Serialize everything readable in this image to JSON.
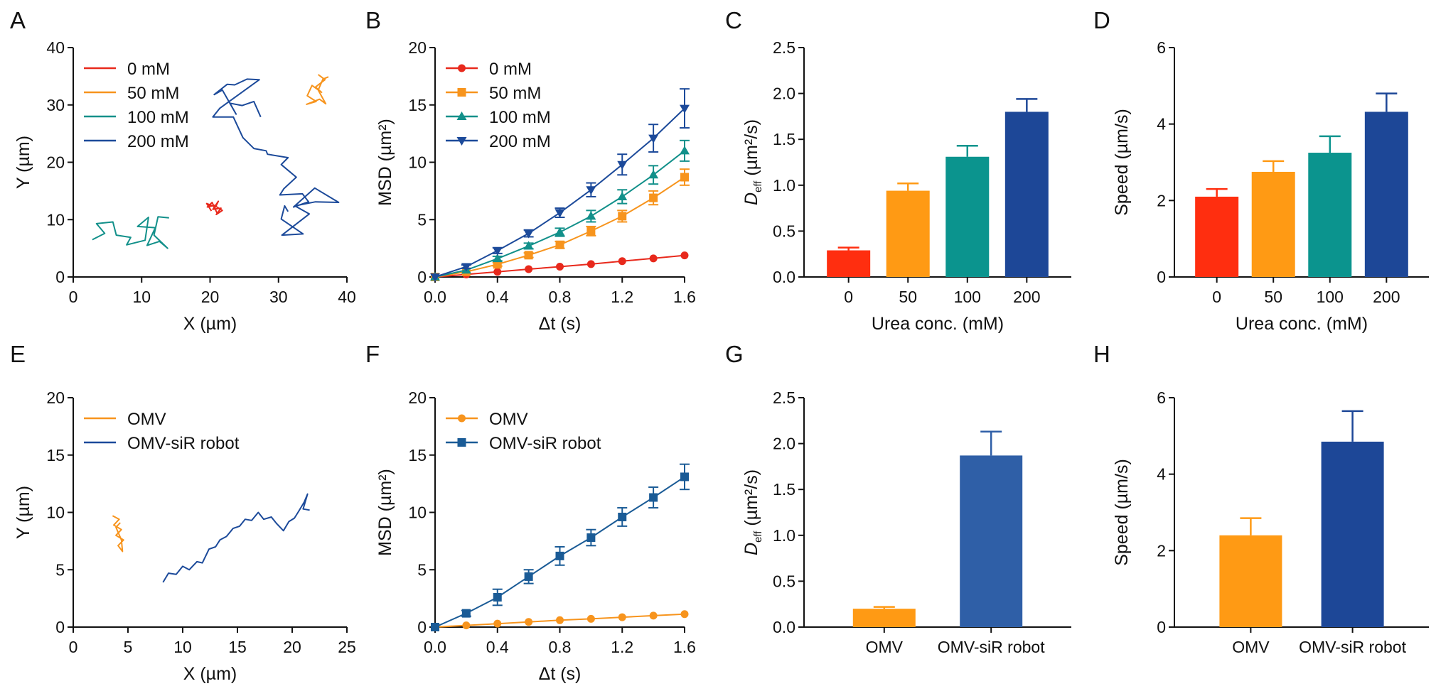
{
  "panels": [
    {
      "id": "A",
      "type": "line",
      "xlabel": "X (µm)",
      "ylabel": "Y (µm)",
      "xlim": [
        0,
        40
      ],
      "ylim": [
        0,
        40
      ],
      "xticks": [
        "0",
        "10",
        "20",
        "30",
        "40"
      ],
      "yticks": [
        "0",
        "10",
        "20",
        "30",
        "40"
      ],
      "legend_position": "top-left",
      "series": [
        {
          "name": "0 mM",
          "color": "#e8291c",
          "points": [
            [
              20.2,
              11.5
            ],
            [
              19.5,
              12.8
            ],
            [
              20.8,
              12.2
            ],
            [
              21.2,
              13.2
            ],
            [
              20.4,
              11.8
            ],
            [
              21.6,
              12.0
            ],
            [
              20.9,
              10.9
            ],
            [
              21.8,
              11.6
            ],
            [
              20.6,
              12.5
            ],
            [
              19.6,
              12.2
            ],
            [
              20.3,
              13.0
            ],
            [
              21.0,
              11.2
            ]
          ]
        },
        {
          "name": "50 mM",
          "color": "#f7941d",
          "points": [
            [
              35.8,
              35.3
            ],
            [
              36.8,
              34.4
            ],
            [
              35.4,
              33.1
            ],
            [
              36.3,
              32.2
            ],
            [
              34.9,
              33.4
            ],
            [
              34.2,
              31.6
            ],
            [
              35.5,
              30.6
            ],
            [
              34.1,
              30.1
            ],
            [
              36.0,
              31.0
            ],
            [
              36.9,
              30.2
            ],
            [
              35.8,
              32.6
            ],
            [
              36.5,
              34.5
            ],
            [
              37.3,
              34.9
            ]
          ]
        },
        {
          "name": "100 mM",
          "color": "#12908a",
          "points": [
            [
              2.8,
              6.5
            ],
            [
              4.6,
              7.6
            ],
            [
              3.4,
              9.3
            ],
            [
              5.8,
              9.6
            ],
            [
              6.3,
              7.3
            ],
            [
              8.4,
              6.9
            ],
            [
              7.8,
              5.6
            ],
            [
              10.5,
              6.4
            ],
            [
              11.0,
              10.4
            ],
            [
              9.4,
              8.8
            ],
            [
              12.0,
              8.6
            ],
            [
              10.8,
              5.5
            ],
            [
              12.6,
              6.2
            ],
            [
              13.8,
              5.0
            ],
            [
              11.8,
              7.3
            ],
            [
              12.4,
              10.5
            ],
            [
              14.0,
              10.3
            ]
          ]
        },
        {
          "name": "200 mM",
          "color": "#1c4a9a",
          "points": [
            [
              27.4,
              27.9
            ],
            [
              26.4,
              30.6
            ],
            [
              24.7,
              29.9
            ],
            [
              22.9,
              30.3
            ],
            [
              23.8,
              28.4
            ],
            [
              21.8,
              32.6
            ],
            [
              20.6,
              31.8
            ],
            [
              22.5,
              33.6
            ],
            [
              23.6,
              33.5
            ],
            [
              25.4,
              34.5
            ],
            [
              27.2,
              34.4
            ],
            [
              21.4,
              29.4
            ],
            [
              20.4,
              27.9
            ],
            [
              23.4,
              27.9
            ],
            [
              24.8,
              24.3
            ],
            [
              26.4,
              22.4
            ],
            [
              28.2,
              22.0
            ],
            [
              28.4,
              21.4
            ],
            [
              31.4,
              20.8
            ],
            [
              30.4,
              19.6
            ],
            [
              31.4,
              18.6
            ],
            [
              32.6,
              17.4
            ],
            [
              30.8,
              15.4
            ],
            [
              30.2,
              14.3
            ],
            [
              33.5,
              14.5
            ],
            [
              34.4,
              13.1
            ],
            [
              32.2,
              12.2
            ],
            [
              35.3,
              15.5
            ],
            [
              38.8,
              13.0
            ],
            [
              35.4,
              13.1
            ],
            [
              32.4,
              12.4
            ],
            [
              34.5,
              11.0
            ],
            [
              30.5,
              7.3
            ],
            [
              33.6,
              7.5
            ],
            [
              30.4,
              10.1
            ],
            [
              30.9,
              12.4
            ],
            [
              31.4,
              11.4
            ]
          ]
        }
      ]
    },
    {
      "id": "B",
      "type": "line",
      "xlabel": "Δt (s)",
      "ylabel": "MSD (µm²)",
      "xlim": [
        0,
        1.6
      ],
      "ylim": [
        0,
        20
      ],
      "xticks": [
        "0.0",
        "0.4",
        "0.8",
        "1.2",
        "1.6"
      ],
      "yticks": [
        "0",
        "5",
        "10",
        "15",
        "20"
      ],
      "legend_position": "top-left",
      "x": [
        0,
        0.2,
        0.4,
        0.6,
        0.8,
        1.0,
        1.2,
        1.4,
        1.6
      ],
      "series": [
        {
          "name": "0 mM",
          "color": "#e8291c",
          "marker": "circle",
          "values": [
            0,
            0.22,
            0.45,
            0.68,
            0.9,
            1.12,
            1.38,
            1.62,
            1.88
          ],
          "err": [
            0,
            0.05,
            0.05,
            0.06,
            0.07,
            0.08,
            0.09,
            0.1,
            0.1
          ]
        },
        {
          "name": "50 mM",
          "color": "#f7941d",
          "marker": "square",
          "values": [
            0,
            0.45,
            1.1,
            1.9,
            2.8,
            4.0,
            5.3,
            6.9,
            8.7
          ],
          "err": [
            0,
            0.1,
            0.15,
            0.2,
            0.3,
            0.4,
            0.5,
            0.6,
            0.7
          ]
        },
        {
          "name": "100 mM",
          "color": "#12908a",
          "marker": "triangle-up",
          "values": [
            0,
            0.6,
            1.6,
            2.7,
            3.9,
            5.3,
            7.0,
            8.9,
            11.0
          ],
          "err": [
            0,
            0.1,
            0.2,
            0.25,
            0.35,
            0.5,
            0.6,
            0.8,
            0.9
          ]
        },
        {
          "name": "200 mM",
          "color": "#1c4a9a",
          "marker": "triangle-down",
          "values": [
            0,
            0.9,
            2.3,
            3.8,
            5.6,
            7.6,
            9.8,
            12.1,
            14.7
          ],
          "err": [
            0,
            0.15,
            0.25,
            0.3,
            0.4,
            0.6,
            0.9,
            1.2,
            1.7
          ]
        }
      ]
    },
    {
      "id": "C",
      "type": "bar",
      "xlabel": "Urea conc. (mM)",
      "ylabel_main": "D",
      "ylabel_sub": "eff",
      "ylabel_unit": " (µm²/s)",
      "ylim": [
        0,
        2.5
      ],
      "yticks": [
        "0.0",
        "0.5",
        "1.0",
        "1.5",
        "2.0",
        "2.5"
      ],
      "categories": [
        "0",
        "50",
        "100",
        "200"
      ],
      "values": [
        0.29,
        0.94,
        1.31,
        1.8
      ],
      "err": [
        0.03,
        0.08,
        0.12,
        0.14
      ],
      "colors": [
        "#ff2e0f",
        "#ff9a14",
        "#0b948e",
        "#1d4797"
      ]
    },
    {
      "id": "D",
      "type": "bar",
      "xlabel": "Urea conc. (mM)",
      "ylabel": "Speed (µm/s)",
      "ylim": [
        0,
        6
      ],
      "yticks": [
        "0",
        "2",
        "4",
        "6"
      ],
      "categories": [
        "0",
        "50",
        "100",
        "200"
      ],
      "values": [
        2.1,
        2.75,
        3.25,
        4.32
      ],
      "err": [
        0.2,
        0.28,
        0.43,
        0.48
      ],
      "colors": [
        "#ff2e0f",
        "#ff9a14",
        "#0b948e",
        "#1d4797"
      ]
    },
    {
      "id": "E",
      "type": "line",
      "xlabel": "X (µm)",
      "ylabel": "Y (µm)",
      "xlim": [
        0,
        25
      ],
      "ylim": [
        0,
        20
      ],
      "xticks": [
        "0",
        "5",
        "10",
        "15",
        "20",
        "25"
      ],
      "yticks": [
        "0",
        "5",
        "10",
        "15",
        "20"
      ],
      "legend_position": "top-left",
      "series": [
        {
          "name": "OMV",
          "color": "#f7941d",
          "points": [
            [
              3.6,
              9.7
            ],
            [
              4.2,
              9.4
            ],
            [
              3.7,
              8.9
            ],
            [
              4.4,
              8.5
            ],
            [
              3.9,
              8.0
            ],
            [
              4.6,
              7.6
            ],
            [
              4.1,
              7.1
            ],
            [
              4.5,
              6.6
            ],
            [
              4.4,
              7.6
            ],
            [
              3.9,
              8.7
            ],
            [
              4.3,
              9.1
            ]
          ]
        },
        {
          "name": "OMV-siR robot",
          "color": "#1c4a9a",
          "points": [
            [
              8.2,
              3.9
            ],
            [
              8.7,
              4.7
            ],
            [
              9.4,
              4.6
            ],
            [
              10.0,
              5.3
            ],
            [
              10.6,
              5.0
            ],
            [
              11.3,
              5.7
            ],
            [
              11.8,
              5.6
            ],
            [
              12.4,
              6.8
            ],
            [
              13.0,
              7.0
            ],
            [
              13.4,
              7.6
            ],
            [
              14.0,
              7.9
            ],
            [
              14.6,
              8.6
            ],
            [
              15.2,
              8.8
            ],
            [
              15.7,
              9.4
            ],
            [
              16.3,
              9.3
            ],
            [
              16.9,
              10.0
            ],
            [
              17.4,
              9.4
            ],
            [
              18.1,
              9.6
            ],
            [
              18.6,
              9.0
            ],
            [
              19.2,
              8.4
            ],
            [
              19.7,
              9.2
            ],
            [
              20.2,
              9.5
            ],
            [
              20.6,
              10.1
            ],
            [
              21.1,
              10.9
            ],
            [
              21.4,
              11.6
            ],
            [
              21.0,
              10.3
            ],
            [
              21.6,
              10.2
            ]
          ]
        }
      ]
    },
    {
      "id": "F",
      "type": "line",
      "xlabel": "Δt (s)",
      "ylabel": "MSD (µm²)",
      "xlim": [
        0,
        1.6
      ],
      "ylim": [
        0,
        20
      ],
      "xticks": [
        "0.0",
        "0.4",
        "0.8",
        "1.2",
        "1.6"
      ],
      "yticks": [
        "0",
        "5",
        "10",
        "15",
        "20"
      ],
      "legend_position": "top-left",
      "x": [
        0,
        0.2,
        0.4,
        0.6,
        0.8,
        1.0,
        1.2,
        1.4,
        1.6
      ],
      "series": [
        {
          "name": "OMV",
          "color": "#f7941d",
          "marker": "circle",
          "values": [
            0,
            0.15,
            0.3,
            0.45,
            0.6,
            0.72,
            0.86,
            1.0,
            1.13
          ],
          "err": [
            0,
            0.03,
            0.04,
            0.05,
            0.06,
            0.07,
            0.08,
            0.08,
            0.09
          ]
        },
        {
          "name": "OMV-siR robot",
          "color": "#1a5b96",
          "marker": "square",
          "values": [
            0,
            1.2,
            2.6,
            4.4,
            6.2,
            7.8,
            9.6,
            11.3,
            13.1
          ],
          "err": [
            0,
            0.25,
            0.7,
            0.6,
            0.8,
            0.7,
            0.8,
            0.9,
            1.1
          ]
        }
      ]
    },
    {
      "id": "G",
      "type": "bar",
      "xlabel": "",
      "ylabel_main": "D",
      "ylabel_sub": "eff",
      "ylabel_unit": " (µm²/s)",
      "ylim": [
        0,
        2.5
      ],
      "yticks": [
        "0.0",
        "0.5",
        "1.0",
        "1.5",
        "2.0",
        "2.5"
      ],
      "categories": [
        "OMV",
        "OMV-siR robot"
      ],
      "values": [
        0.2,
        1.87
      ],
      "err": [
        0.02,
        0.26
      ],
      "colors": [
        "#ff9a14",
        "#2f5fa7"
      ]
    },
    {
      "id": "H",
      "type": "bar",
      "xlabel": "",
      "ylabel": "Speed (µm/s)",
      "ylim": [
        0,
        6
      ],
      "yticks": [
        "0",
        "2",
        "4",
        "6"
      ],
      "categories": [
        "OMV",
        "OMV-siR robot"
      ],
      "values": [
        2.4,
        4.85
      ],
      "err": [
        0.45,
        0.8
      ],
      "colors": [
        "#ff9a14",
        "#1d4797"
      ]
    }
  ]
}
